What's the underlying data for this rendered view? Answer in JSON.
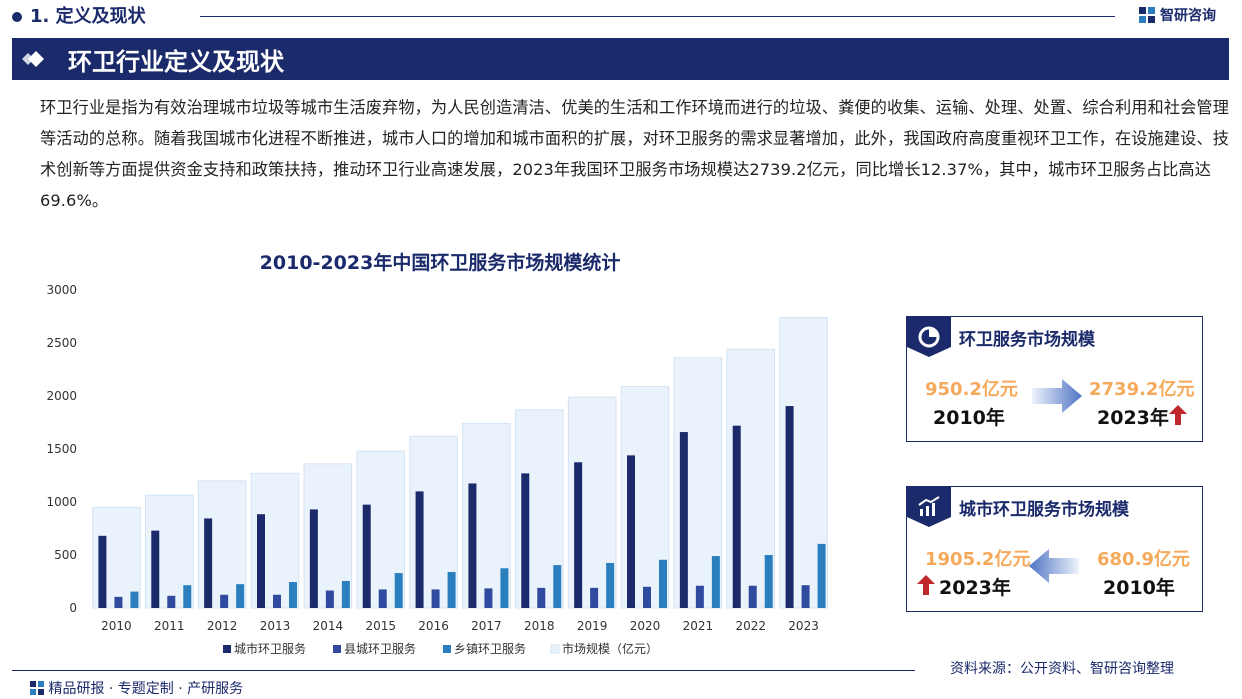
{
  "header": {
    "section_title": "1. 定义及现状",
    "brand_name": "智研咨询",
    "banner_title": "环卫行业定义及现状"
  },
  "intro_text": "环卫行业是指为有效治理城市垃圾等城市生活废弃物，为人民创造清洁、优美的生活和工作环境而进行的垃圾、粪便的收集、运输、处理、处置、综合利用和社会管理等活动的总称。随着我国城市化进程不断推进，城市人口的增加和城市面积的扩展，对环卫服务的需求显著增加，此外，我国政府高度重视环卫工作，在设施建设、技术创新等方面提供资金支持和政策扶持，推动环卫行业高速发展，2023年我国环卫服务市场规模达2739.2亿元，同比增长12.37%，其中，城市环卫服务占比高达69.6%。",
  "chart_data": {
    "type": "bar",
    "title": "2010-2023年中国环卫服务市场规模统计",
    "categories": [
      "2010",
      "2011",
      "2012",
      "2013",
      "2014",
      "2015",
      "2016",
      "2017",
      "2018",
      "2019",
      "2020",
      "2021",
      "2022",
      "2023"
    ],
    "ylim": [
      0,
      3000
    ],
    "yticks": [
      0,
      500,
      1000,
      1500,
      2000,
      2500,
      3000
    ],
    "legend_position": "bottom",
    "series": [
      {
        "name": "城市环卫服务",
        "color": "#1b2a6b",
        "values": [
          680.9,
          730,
          845,
          885,
          930,
          975,
          1100,
          1175,
          1270,
          1375,
          1440,
          1660,
          1720,
          1905.2
        ]
      },
      {
        "name": "县城环卫服务",
        "color": "#2f4a9e",
        "values": [
          105,
          115,
          125,
          125,
          165,
          175,
          175,
          185,
          190,
          190,
          200,
          210,
          210,
          215
        ]
      },
      {
        "name": "乡镇环卫服务",
        "color": "#2c7fbf",
        "values": [
          155,
          215,
          225,
          245,
          255,
          330,
          340,
          375,
          405,
          425,
          455,
          490,
          500,
          605
        ]
      },
      {
        "name": "市场规模（亿元）",
        "color": "#eaf3fb",
        "values": [
          950.2,
          1065,
          1200,
          1270,
          1360,
          1480,
          1620,
          1740,
          1870,
          1990,
          2090,
          2360,
          2440,
          2739.2
        ]
      }
    ]
  },
  "box1": {
    "title": "环卫服务市场规模",
    "icon": "chart-pie-icon",
    "value_2010": "950.2亿元",
    "year_2010": "2010年",
    "value_2023": "2739.2亿元",
    "year_2023": "2023年",
    "arrow_color": "#c0282d"
  },
  "box2": {
    "title": "城市环卫服务市场规模",
    "icon": "trend-chart-icon",
    "value_2023": "1905.2亿元",
    "year_2023": "2023年",
    "value_2010": "680.9亿元",
    "year_2010": "2010年",
    "arrow_color": "#c0282d"
  },
  "footer": {
    "source": "资料来源：公开资料、智研咨询整理",
    "slogan": "精品研报 · 专题定制 · 产研服务"
  },
  "colors": {
    "navy": "#1b2a6b",
    "orange": "#f5a95b"
  }
}
